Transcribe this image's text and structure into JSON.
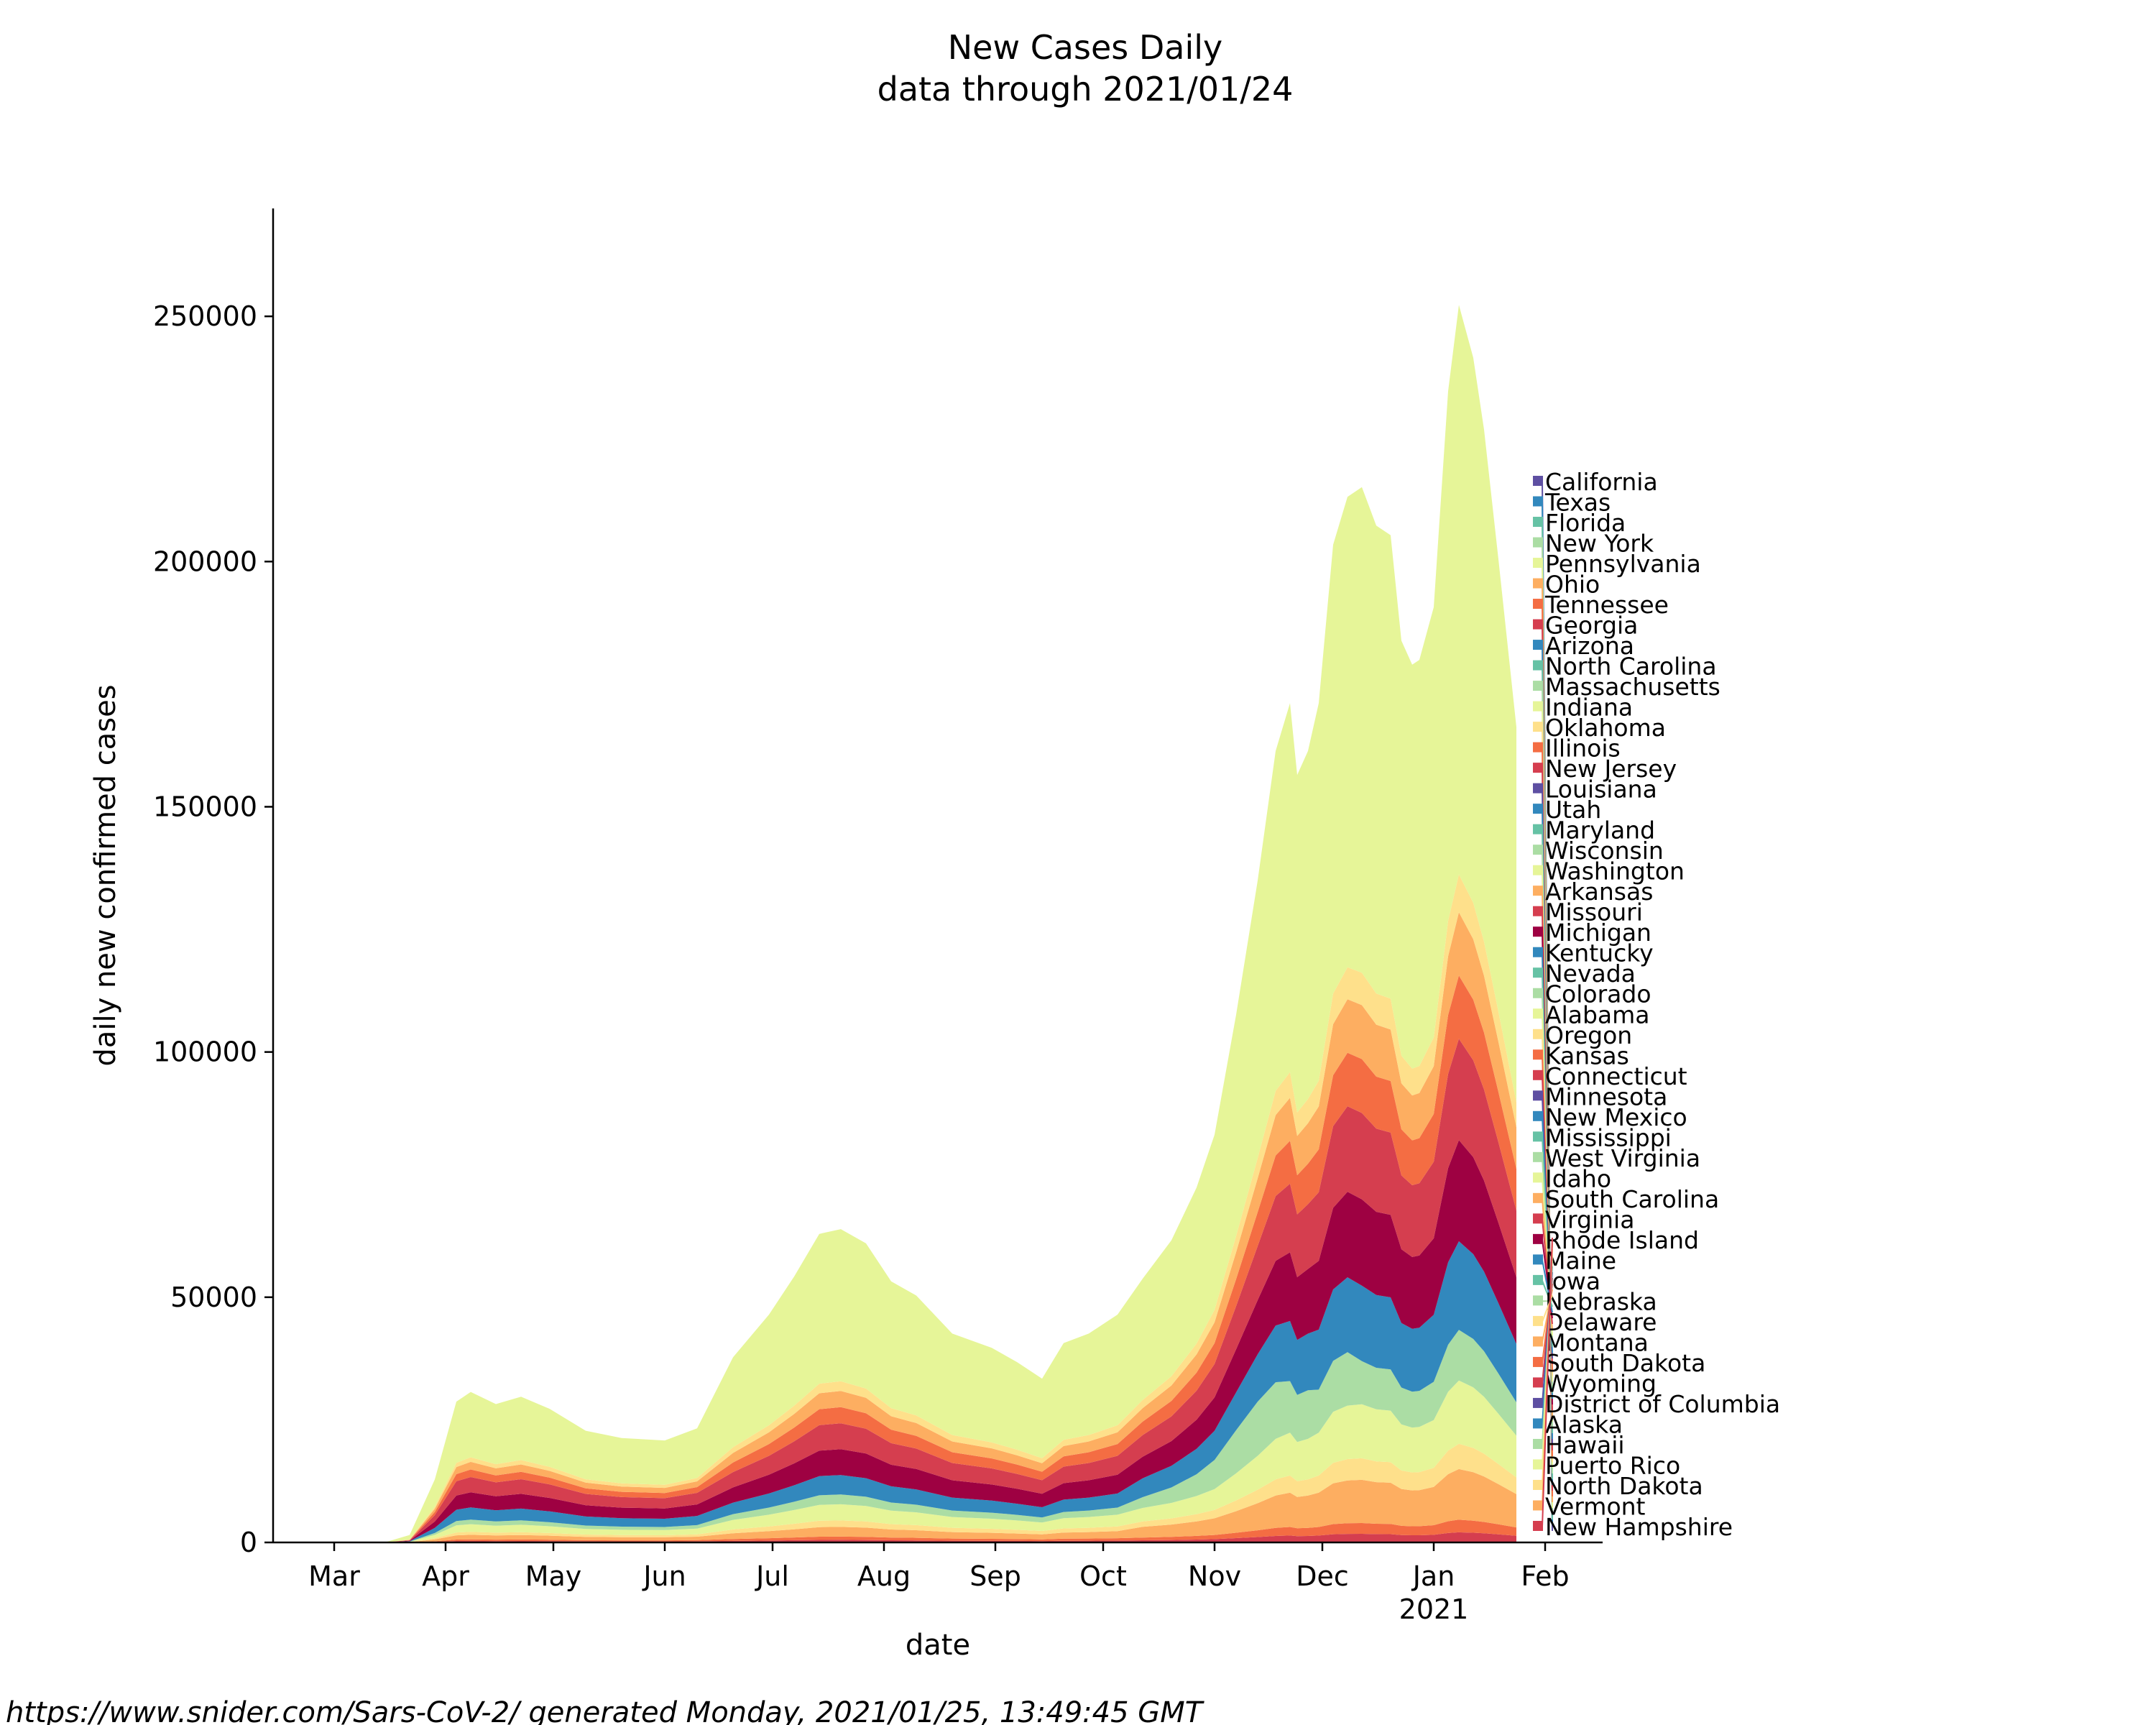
{
  "chart_data": {
    "type": "area",
    "stacked": true,
    "title": "New Cases Daily",
    "subtitle": "data through 2021/01/24",
    "xlabel": "date",
    "ylabel": "daily new confirmed cases",
    "x_range": [
      "2020-02-13",
      "2021-02-17"
    ],
    "ylim": [
      0,
      272000
    ],
    "y_ticks": [
      0,
      50000,
      100000,
      150000,
      200000,
      250000
    ],
    "x_ticks": [
      {
        "label": "Mar",
        "date": "2020-03-01"
      },
      {
        "label": "Apr",
        "date": "2020-04-01"
      },
      {
        "label": "May",
        "date": "2020-05-01"
      },
      {
        "label": "Jun",
        "date": "2020-06-01"
      },
      {
        "label": "Jul",
        "date": "2020-07-01"
      },
      {
        "label": "Aug",
        "date": "2020-08-01"
      },
      {
        "label": "Sep",
        "date": "2020-09-01"
      },
      {
        "label": "Oct",
        "date": "2020-10-01"
      },
      {
        "label": "Nov",
        "date": "2020-11-01"
      },
      {
        "label": "Dec",
        "date": "2020-12-01"
      },
      {
        "label": "Jan",
        "date": "2021-01-01"
      },
      {
        "label": "Feb",
        "date": "2021-02-01"
      }
    ],
    "x_tick_secondary": {
      "label": "2021",
      "date": "2021-01-01"
    },
    "grid": false,
    "legend_position": "right",
    "total_series": {
      "name": "",
      "x": [
        "2020-03-15",
        "2020-03-22",
        "2020-03-29",
        "2020-04-04",
        "2020-04-08",
        "2020-04-15",
        "2020-04-22",
        "2020-04-30",
        "2020-05-10",
        "2020-05-20",
        "2020-06-01",
        "2020-06-10",
        "2020-06-20",
        "2020-06-30",
        "2020-07-07",
        "2020-07-14",
        "2020-07-20",
        "2020-07-27",
        "2020-08-03",
        "2020-08-10",
        "2020-08-20",
        "2020-08-31",
        "2020-09-07",
        "2020-09-14",
        "2020-09-20",
        "2020-09-27",
        "2020-10-05",
        "2020-10-12",
        "2020-10-20",
        "2020-10-27",
        "2020-11-01",
        "2020-11-07",
        "2020-11-13",
        "2020-11-18",
        "2020-11-22",
        "2020-11-24",
        "2020-11-27",
        "2020-11-30",
        "2020-12-04",
        "2020-12-08",
        "2020-12-12",
        "2020-12-16",
        "2020-12-20",
        "2020-12-23",
        "2020-12-26",
        "2020-12-28",
        "2021-01-01",
        "2021-01-05",
        "2021-01-08",
        "2021-01-12",
        "2021-01-15",
        "2021-01-19",
        "2021-01-24"
      ],
      "values": [
        0,
        1500,
        13000,
        29000,
        31000,
        28500,
        30000,
        27500,
        23000,
        21500,
        21000,
        23500,
        39000,
        48000,
        56000,
        65000,
        66000,
        63000,
        55000,
        52000,
        44000,
        41000,
        38000,
        34500,
        42000,
        44000,
        48000,
        55000,
        63000,
        74000,
        85000,
        110000,
        138000,
        165000,
        175000,
        160000,
        165000,
        175000,
        208000,
        218000,
        220000,
        212000,
        210000,
        188000,
        183000,
        184000,
        195000,
        240000,
        258000,
        247000,
        232000,
        205000,
        170000
      ]
    },
    "layers": [
      {
        "name": "New Hampshire",
        "color": "#d53e4f",
        "fraction": [
          0.003,
          0.005,
          0.008,
          0.01,
          0.01,
          0.01,
          0.01,
          0.01,
          0.01,
          0.01,
          0.01,
          0.01,
          0.008,
          0.008,
          0.008,
          0.008,
          0.008,
          0.008,
          0.008,
          0.008,
          0.008,
          0.008,
          0.008,
          0.008,
          0.008,
          0.008,
          0.008,
          0.008,
          0.008,
          0.008,
          0.008,
          0.008,
          0.008,
          0.008,
          0.008,
          0.008,
          0.008,
          0.008,
          0.008,
          0.008,
          0.008,
          0.008,
          0.008,
          0.008,
          0.008,
          0.008,
          0.008,
          0.008,
          0.008,
          0.008,
          0.008,
          0.008,
          0.008
        ]
      },
      {
        "name": "Vermont",
        "color": "#f46d43",
        "fraction": [
          0.01,
          0.01,
          0.01,
          0.01,
          0.01,
          0.01,
          0.01,
          0.01,
          0.01,
          0.01,
          0.01,
          0.01,
          0.01,
          0.01,
          0.01,
          0.01,
          0.01,
          0.01,
          0.01,
          0.01,
          0.01,
          0.01,
          0.01,
          0.01,
          0.01,
          0.01,
          0.01,
          0.01,
          0.01,
          0.01,
          0.01,
          0.01,
          0.01,
          0.01,
          0.01,
          0.01,
          0.01,
          0.01,
          0.01,
          0.01,
          0.01,
          0.01,
          0.01,
          0.01,
          0.01,
          0.01,
          0.01,
          0.01,
          0.01,
          0.01,
          0.01,
          0.01,
          0.01
        ]
      },
      {
        "name": "North Dakota",
        "color": "#fdae61",
        "fraction": [
          0.01,
          0.02,
          0.03,
          0.03,
          0.03,
          0.03,
          0.03,
          0.03,
          0.03,
          0.03,
          0.03,
          0.03,
          0.03,
          0.03,
          0.03,
          0.03,
          0.03,
          0.03,
          0.03,
          0.03,
          0.03,
          0.03,
          0.03,
          0.03,
          0.03,
          0.03,
          0.03,
          0.04,
          0.04,
          0.04,
          0.04,
          0.04,
          0.04,
          0.04,
          0.04,
          0.04,
          0.04,
          0.04,
          0.04,
          0.04,
          0.04,
          0.04,
          0.04,
          0.04,
          0.04,
          0.04,
          0.04,
          0.04,
          0.04,
          0.04,
          0.04,
          0.04,
          0.04
        ]
      },
      {
        "name": "Puerto Rico",
        "color": "#fee08b",
        "fraction": [
          0.01,
          0.02,
          0.02,
          0.02,
          0.02,
          0.02,
          0.02,
          0.02,
          0.02,
          0.02,
          0.02,
          0.02,
          0.02,
          0.02,
          0.02,
          0.02,
          0.02,
          0.02,
          0.02,
          0.02,
          0.02,
          0.02,
          0.02,
          0.02,
          0.02,
          0.02,
          0.02,
          0.02,
          0.02,
          0.02,
          0.02,
          0.02,
          0.02,
          0.02,
          0.02,
          0.02,
          0.02,
          0.02,
          0.02,
          0.02,
          0.02,
          0.02,
          0.02,
          0.02,
          0.02,
          0.02,
          0.02,
          0.02,
          0.02,
          0.02,
          0.02,
          0.02,
          0.02
        ]
      },
      {
        "name": "Hawaii",
        "color": "#e6f598",
        "fraction": [
          0.02,
          0.04,
          0.05,
          0.05,
          0.05,
          0.05,
          0.05,
          0.05,
          0.05,
          0.05,
          0.05,
          0.05,
          0.05,
          0.05,
          0.05,
          0.05,
          0.05,
          0.05,
          0.05,
          0.05,
          0.05,
          0.05,
          0.05,
          0.05,
          0.05,
          0.05,
          0.05,
          0.05,
          0.05,
          0.05,
          0.05,
          0.05,
          0.05,
          0.05,
          0.05,
          0.05,
          0.05,
          0.05,
          0.05,
          0.05,
          0.05,
          0.05,
          0.05,
          0.05,
          0.05,
          0.05,
          0.05,
          0.05,
          0.05,
          0.05,
          0.05,
          0.05,
          0.05
        ]
      },
      {
        "name": "Alaska",
        "color": "#abdda4",
        "fraction": [
          0.02,
          0.03,
          0.03,
          0.03,
          0.03,
          0.03,
          0.03,
          0.03,
          0.03,
          0.03,
          0.03,
          0.03,
          0.03,
          0.03,
          0.03,
          0.03,
          0.03,
          0.03,
          0.03,
          0.03,
          0.03,
          0.03,
          0.03,
          0.03,
          0.03,
          0.03,
          0.03,
          0.04,
          0.05,
          0.06,
          0.07,
          0.08,
          0.08,
          0.07,
          0.06,
          0.06,
          0.06,
          0.05,
          0.05,
          0.05,
          0.04,
          0.04,
          0.04,
          0.04,
          0.04,
          0.04,
          0.04,
          0.04,
          0.04,
          0.04,
          0.04,
          0.04,
          0.04
        ]
      },
      {
        "name": "District of Columbia",
        "color": "#3288bd",
        "fraction": [
          0.03,
          0.05,
          0.08,
          0.08,
          0.08,
          0.08,
          0.08,
          0.08,
          0.08,
          0.08,
          0.08,
          0.08,
          0.06,
          0.06,
          0.06,
          0.06,
          0.06,
          0.06,
          0.06,
          0.06,
          0.06,
          0.06,
          0.06,
          0.06,
          0.06,
          0.06,
          0.06,
          0.07,
          0.07,
          0.07,
          0.07,
          0.07,
          0.07,
          0.07,
          0.07,
          0.07,
          0.07,
          0.07,
          0.07,
          0.07,
          0.07,
          0.07,
          0.07,
          0.07,
          0.07,
          0.07,
          0.07,
          0.07,
          0.07,
          0.07,
          0.07,
          0.07,
          0.07
        ]
      },
      {
        "name": "Wyoming",
        "color": "#9e0142",
        "fraction": [
          0.04,
          0.06,
          0.1,
          0.1,
          0.1,
          0.1,
          0.1,
          0.1,
          0.1,
          0.1,
          0.1,
          0.1,
          0.08,
          0.08,
          0.08,
          0.08,
          0.08,
          0.08,
          0.08,
          0.08,
          0.08,
          0.08,
          0.08,
          0.08,
          0.08,
          0.08,
          0.08,
          0.08,
          0.08,
          0.08,
          0.08,
          0.08,
          0.08,
          0.08,
          0.08,
          0.08,
          0.08,
          0.08,
          0.08,
          0.08,
          0.08,
          0.08,
          0.08,
          0.08,
          0.08,
          0.08,
          0.08,
          0.08,
          0.08,
          0.08,
          0.08,
          0.08,
          0.08
        ]
      },
      {
        "name": "South Dakota",
        "color": "#d53e4f",
        "fraction": [
          0.04,
          0.06,
          0.1,
          0.1,
          0.1,
          0.1,
          0.1,
          0.1,
          0.1,
          0.1,
          0.1,
          0.1,
          0.08,
          0.08,
          0.08,
          0.08,
          0.08,
          0.08,
          0.08,
          0.08,
          0.08,
          0.08,
          0.08,
          0.08,
          0.08,
          0.08,
          0.08,
          0.08,
          0.08,
          0.08,
          0.08,
          0.08,
          0.08,
          0.08,
          0.08,
          0.08,
          0.08,
          0.08,
          0.08,
          0.08,
          0.08,
          0.08,
          0.08,
          0.08,
          0.08,
          0.08,
          0.08,
          0.08,
          0.08,
          0.08,
          0.08,
          0.08,
          0.08
        ]
      },
      {
        "name": "Montana",
        "color": "#f46d43",
        "fraction": [
          0.03,
          0.04,
          0.05,
          0.05,
          0.05,
          0.05,
          0.05,
          0.05,
          0.05,
          0.05,
          0.05,
          0.05,
          0.05,
          0.05,
          0.05,
          0.05,
          0.05,
          0.05,
          0.05,
          0.05,
          0.05,
          0.05,
          0.05,
          0.05,
          0.05,
          0.05,
          0.05,
          0.05,
          0.05,
          0.05,
          0.05,
          0.05,
          0.05,
          0.05,
          0.05,
          0.05,
          0.05,
          0.05,
          0.05,
          0.05,
          0.05,
          0.05,
          0.05,
          0.05,
          0.05,
          0.05,
          0.05,
          0.05,
          0.05,
          0.05,
          0.05,
          0.05,
          0.05
        ]
      },
      {
        "name": "Delaware",
        "color": "#fdae61",
        "fraction": [
          0.03,
          0.04,
          0.05,
          0.05,
          0.05,
          0.05,
          0.05,
          0.05,
          0.05,
          0.05,
          0.05,
          0.05,
          0.05,
          0.05,
          0.05,
          0.05,
          0.05,
          0.05,
          0.05,
          0.05,
          0.05,
          0.05,
          0.05,
          0.05,
          0.05,
          0.05,
          0.05,
          0.05,
          0.05,
          0.05,
          0.05,
          0.05,
          0.05,
          0.05,
          0.05,
          0.05,
          0.05,
          0.05,
          0.05,
          0.05,
          0.05,
          0.05,
          0.05,
          0.05,
          0.05,
          0.05,
          0.05,
          0.05,
          0.05,
          0.05,
          0.05,
          0.05,
          0.05
        ]
      },
      {
        "name": "Nebraska",
        "color": "#fee08b",
        "fraction": [
          0.02,
          0.02,
          0.03,
          0.03,
          0.03,
          0.03,
          0.03,
          0.03,
          0.03,
          0.03,
          0.03,
          0.03,
          0.03,
          0.03,
          0.03,
          0.03,
          0.03,
          0.03,
          0.03,
          0.03,
          0.03,
          0.03,
          0.03,
          0.03,
          0.03,
          0.03,
          0.03,
          0.03,
          0.03,
          0.03,
          0.03,
          0.03,
          0.03,
          0.03,
          0.03,
          0.03,
          0.03,
          0.03,
          0.03,
          0.03,
          0.03,
          0.03,
          0.03,
          0.03,
          0.03,
          0.03,
          0.03,
          0.03,
          0.03,
          0.03,
          0.03,
          0.03,
          0.03
        ]
      },
      {
        "name": "Iowa",
        "color": "#e6f598",
        "fraction": [
          0.73,
          0.62,
          0.43,
          0.43,
          0.43,
          0.43,
          0.43,
          0.43,
          0.43,
          0.43,
          0.43,
          0.43,
          0.47,
          0.47,
          0.47,
          0.47,
          0.47,
          0.47,
          0.47,
          0.47,
          0.47,
          0.47,
          0.47,
          0.47,
          0.47,
          0.47,
          0.47,
          0.45,
          0.44,
          0.43,
          0.42,
          0.41,
          0.41,
          0.42,
          0.43,
          0.43,
          0.43,
          0.44,
          0.44,
          0.44,
          0.45,
          0.45,
          0.45,
          0.45,
          0.45,
          0.45,
          0.45,
          0.45,
          0.45,
          0.45,
          0.45,
          0.45,
          0.45
        ]
      }
    ],
    "legend_entries": [
      {
        "name": "California",
        "color": "#5e4fa2"
      },
      {
        "name": "Texas",
        "color": "#3288bd"
      },
      {
        "name": "Florida",
        "color": "#66c2a5"
      },
      {
        "name": "New York",
        "color": "#abdda4"
      },
      {
        "name": "Pennsylvania",
        "color": "#e6f598"
      },
      {
        "name": "Ohio",
        "color": "#fdae61"
      },
      {
        "name": "Tennessee",
        "color": "#f46d43"
      },
      {
        "name": "Georgia",
        "color": "#d53e4f"
      },
      {
        "name": "Arizona",
        "color": "#3288bd"
      },
      {
        "name": "North Carolina",
        "color": "#66c2a5"
      },
      {
        "name": "Massachusetts",
        "color": "#abdda4"
      },
      {
        "name": "Indiana",
        "color": "#e6f598"
      },
      {
        "name": "Oklahoma",
        "color": "#fee08b"
      },
      {
        "name": "Illinois",
        "color": "#f46d43"
      },
      {
        "name": "New Jersey",
        "color": "#d53e4f"
      },
      {
        "name": "Louisiana",
        "color": "#5e4fa2"
      },
      {
        "name": "Utah",
        "color": "#3288bd"
      },
      {
        "name": "Maryland",
        "color": "#66c2a5"
      },
      {
        "name": "Wisconsin",
        "color": "#abdda4"
      },
      {
        "name": "Washington",
        "color": "#e6f598"
      },
      {
        "name": "Arkansas",
        "color": "#fdae61"
      },
      {
        "name": "Missouri",
        "color": "#d53e4f"
      },
      {
        "name": "Michigan",
        "color": "#9e0142"
      },
      {
        "name": "Kentucky",
        "color": "#3288bd"
      },
      {
        "name": "Nevada",
        "color": "#66c2a5"
      },
      {
        "name": "Colorado",
        "color": "#abdda4"
      },
      {
        "name": "Alabama",
        "color": "#e6f598"
      },
      {
        "name": "Oregon",
        "color": "#fee08b"
      },
      {
        "name": "Kansas",
        "color": "#f46d43"
      },
      {
        "name": "Connecticut",
        "color": "#d53e4f"
      },
      {
        "name": "Minnesota",
        "color": "#5e4fa2"
      },
      {
        "name": "New Mexico",
        "color": "#3288bd"
      },
      {
        "name": "Mississippi",
        "color": "#66c2a5"
      },
      {
        "name": "West Virginia",
        "color": "#abdda4"
      },
      {
        "name": "Idaho",
        "color": "#e6f598"
      },
      {
        "name": "South Carolina",
        "color": "#fdae61"
      },
      {
        "name": "Virginia",
        "color": "#d53e4f"
      },
      {
        "name": "Rhode Island",
        "color": "#9e0142"
      },
      {
        "name": "Maine",
        "color": "#3288bd"
      },
      {
        "name": "Iowa",
        "color": "#66c2a5"
      },
      {
        "name": "Nebraska",
        "color": "#abdda4"
      },
      {
        "name": "Delaware",
        "color": "#fee08b"
      },
      {
        "name": "Montana",
        "color": "#fdae61"
      },
      {
        "name": "South Dakota",
        "color": "#f46d43"
      },
      {
        "name": "Wyoming",
        "color": "#d53e4f"
      },
      {
        "name": "District of Columbia",
        "color": "#5e4fa2"
      },
      {
        "name": "Alaska",
        "color": "#3288bd"
      },
      {
        "name": "Hawaii",
        "color": "#abdda4"
      },
      {
        "name": "Puerto Rico",
        "color": "#e6f598"
      },
      {
        "name": "North Dakota",
        "color": "#fee08b"
      },
      {
        "name": "Vermont",
        "color": "#fdae61"
      },
      {
        "name": "New Hampshire",
        "color": "#d53e4f"
      }
    ]
  },
  "footer": {
    "text": "https://www.snider.com/Sars-CoV-2/ generated Monday, 2021/01/25, 13:49:45 GMT"
  }
}
